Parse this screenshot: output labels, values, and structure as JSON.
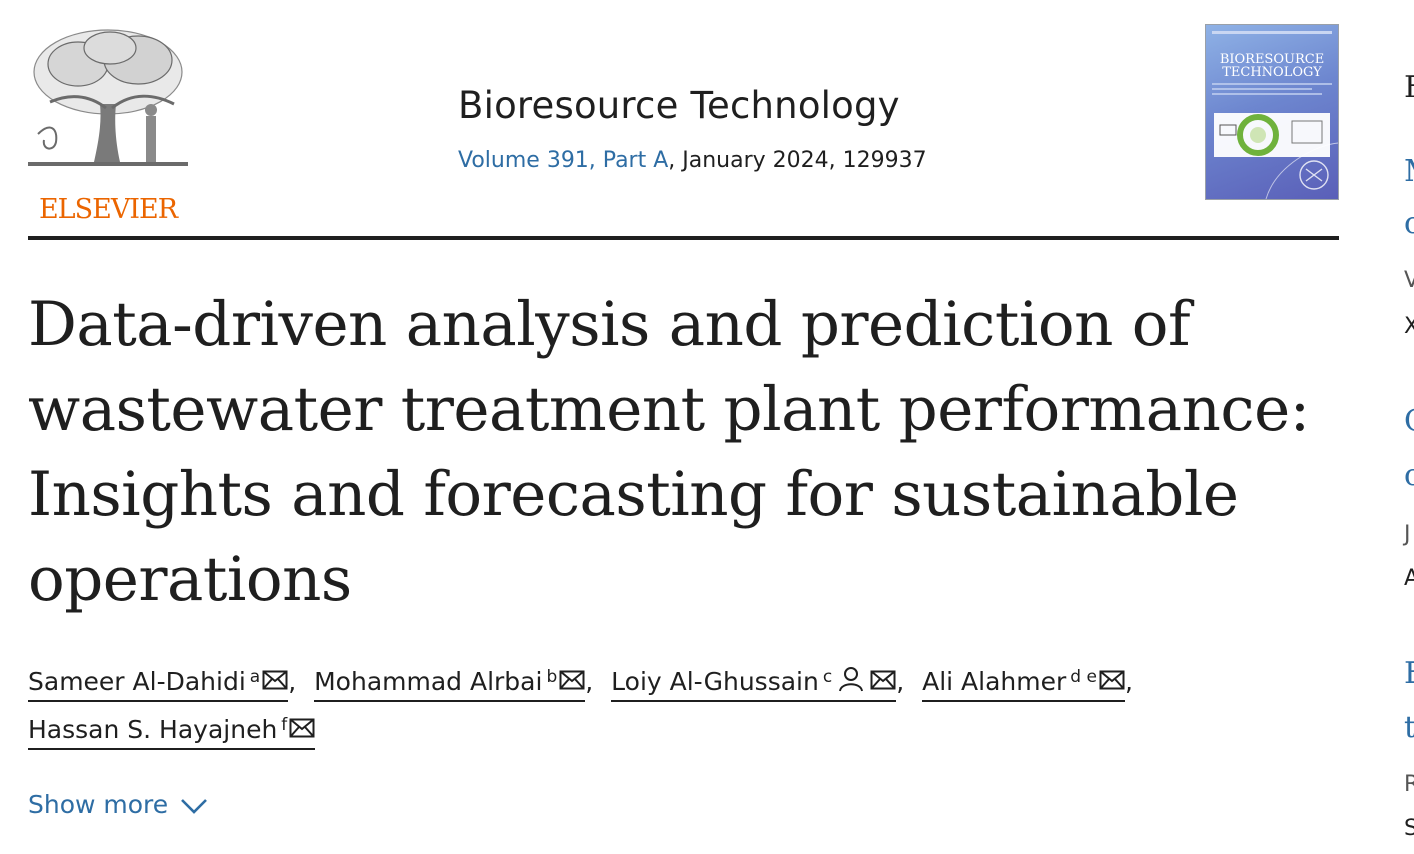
{
  "header": {
    "publisher": "ELSEVIER",
    "journal_title": "Bioresource Technology",
    "volume_link": "Volume 391, Part A",
    "issue_rest": ", January 2024, 129937",
    "cover_title_line1": "BIORESOURCE",
    "cover_title_line2": "TECHNOLOGY"
  },
  "article": {
    "title": "Data-driven analysis and prediction of wastewater treatment plant performance: Insights and forecasting for sustainable operations"
  },
  "authors": [
    {
      "name": "Sameer Al-Dahidi",
      "aff": "a",
      "sep": ","
    },
    {
      "name": "Mohammad Alrbai",
      "aff": "b",
      "sep": ","
    },
    {
      "name": "Loiy Al-Ghussain",
      "aff": "c",
      "sep": ","
    },
    {
      "name": "Ali Alahmer",
      "aff": "d e",
      "sep": ","
    },
    {
      "name": "Hassan S. Hayajneh",
      "aff": "f",
      "sep": ""
    }
  ],
  "show_more": "Show more",
  "side_peek": [
    {
      "text": "F",
      "style": "heading"
    },
    {
      "text": "M",
      "style": "link"
    },
    {
      "text": "o",
      "style": "link"
    },
    {
      "text": "V",
      "style": "meta"
    },
    {
      "text": "X",
      "style": "meta-dark"
    },
    {
      "text": "C",
      "style": "link"
    },
    {
      "text": "o",
      "style": "link"
    },
    {
      "text": "J",
      "style": "meta"
    },
    {
      "text": "A",
      "style": "meta-dark"
    },
    {
      "text": "E",
      "style": "link"
    },
    {
      "text": "t",
      "style": "link"
    },
    {
      "text": "R",
      "style": "meta"
    },
    {
      "text": "S",
      "style": "meta-dark"
    }
  ],
  "colors": {
    "accent": "#2e6da4",
    "publisher": "#eb6500",
    "text": "#1f1f1f"
  }
}
